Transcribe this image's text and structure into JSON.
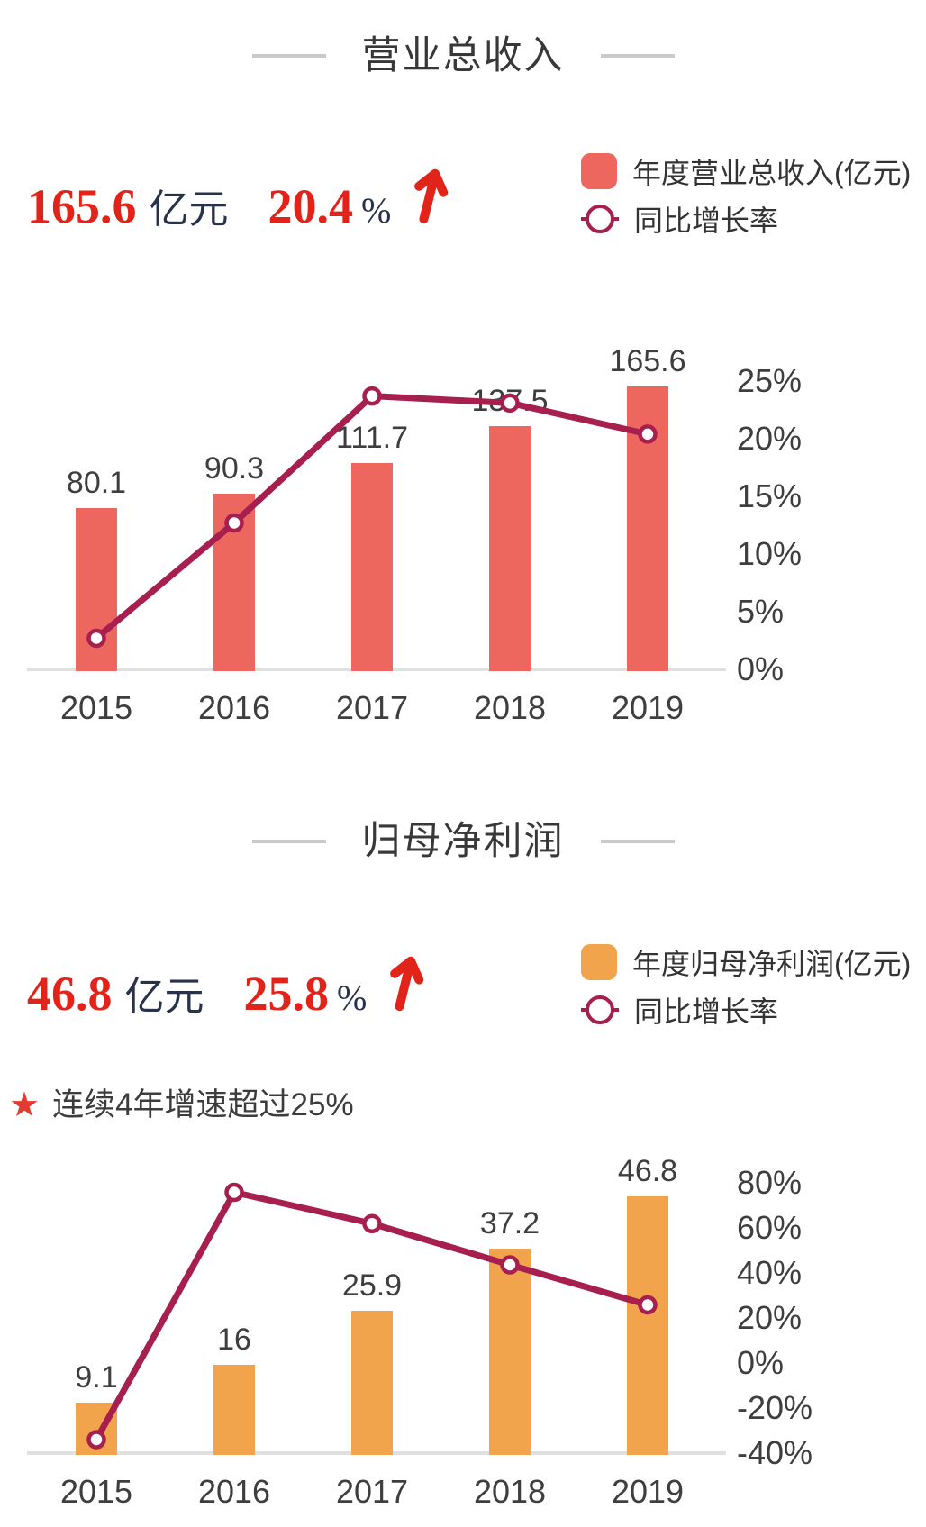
{
  "page": {
    "background": "#ffffff"
  },
  "colors": {
    "bar_revenue": "#ee675f",
    "bar_profit": "#f2a44c",
    "growth_line": "#a61f4f",
    "marker_fill": "#ffffff",
    "highlight_red": "#e2231a",
    "unit_navy": "#28334a",
    "title_gray": "#383838",
    "axis_text": "#3e3e3e",
    "baseline_gray": "#e0e0e0",
    "dash_gray": "#c9c9c9",
    "star_red": "#e23b30"
  },
  "sections": [
    {
      "title": "营业总收入",
      "highlight": {
        "value": "165.6",
        "unit": "亿元",
        "growth": "20.4",
        "growth_unit": "%",
        "trend_icon": "up-arrow"
      },
      "legend": [
        {
          "marker": "bar-swatch",
          "label": "年度营业总收入(亿元)"
        },
        {
          "marker": "line-circle-marker",
          "label": "同比增长率"
        }
      ]
    },
    {
      "title": "归母净利润",
      "highlight": {
        "value": "46.8",
        "unit": "亿元",
        "growth": "25.8",
        "growth_unit": "%",
        "trend_icon": "up-arrow"
      },
      "note": {
        "icon": "star-icon",
        "icon_glyph": "★",
        "text": "连续4年增速超过25%"
      },
      "legend": [
        {
          "marker": "bar-swatch",
          "label": "年度归母净利润(亿元)"
        },
        {
          "marker": "line-circle-marker",
          "label": "同比增长率"
        }
      ]
    }
  ],
  "chart_data": [
    {
      "type": "bar",
      "title": "营业总收入",
      "categories": [
        "2015",
        "2016",
        "2017",
        "2018",
        "2019"
      ],
      "series": [
        {
          "name": "年度营业总收入(亿元)",
          "kind": "bar",
          "unit": "亿元",
          "values": [
            80.1,
            90.3,
            111.7,
            137.5,
            165.6
          ],
          "labels": [
            "80.1",
            "90.3",
            "111.7",
            "137.5",
            "165.6"
          ]
        },
        {
          "name": "同比增长率",
          "kind": "line",
          "unit": "%",
          "values": [
            2.7,
            12.7,
            23.7,
            23.1,
            20.4
          ]
        }
      ],
      "right_axis": {
        "ticks": [
          "25%",
          "20%",
          "15%",
          "10%",
          "5%",
          "0%"
        ],
        "min": 0,
        "max": 25
      },
      "legend_position": "top-right",
      "grid": false
    },
    {
      "type": "bar",
      "title": "归母净利润",
      "categories": [
        "2015",
        "2016",
        "2017",
        "2018",
        "2019"
      ],
      "series": [
        {
          "name": "年度归母净利润(亿元)",
          "kind": "bar",
          "unit": "亿元",
          "values": [
            9.1,
            16,
            25.9,
            37.2,
            46.8
          ],
          "labels": [
            "9.1",
            "16",
            "25.9",
            "37.2",
            "46.8"
          ]
        },
        {
          "name": "同比增长率",
          "kind": "line",
          "unit": "%",
          "values": [
            -34,
            75.8,
            61.9,
            43.6,
            25.8
          ]
        }
      ],
      "right_axis": {
        "ticks": [
          "80%",
          "60%",
          "40%",
          "20%",
          "0%",
          "-20%",
          "-40%"
        ],
        "min": -40,
        "max": 80
      },
      "legend_position": "top-right",
      "grid": false
    }
  ]
}
